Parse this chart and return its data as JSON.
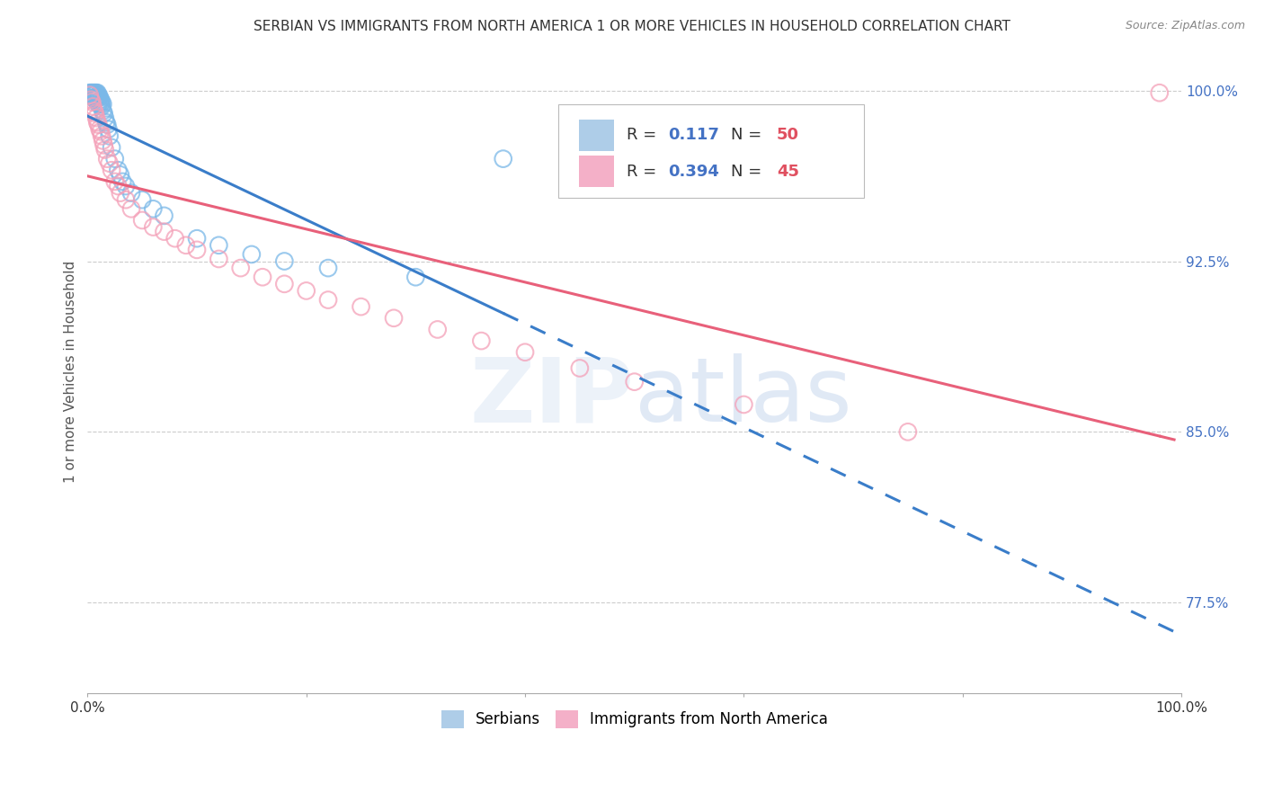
{
  "title": "SERBIAN VS IMMIGRANTS FROM NORTH AMERICA 1 OR MORE VEHICLES IN HOUSEHOLD CORRELATION CHART",
  "source": "Source: ZipAtlas.com",
  "ylabel": "1 or more Vehicles in Household",
  "xlim": [
    0.0,
    1.0
  ],
  "ylim": [
    0.735,
    1.018
  ],
  "ytick_positions": [
    0.775,
    0.85,
    0.925,
    1.0
  ],
  "ytick_labels": [
    "77.5%",
    "85.0%",
    "92.5%",
    "100.0%"
  ],
  "blue_R": 0.117,
  "blue_N": 50,
  "pink_R": 0.394,
  "pink_N": 45,
  "blue_color": "#7ab8e8",
  "pink_color": "#f4a0b8",
  "blue_line_color": "#3a7dc9",
  "pink_line_color": "#e8607a",
  "legend_label_blue": "Serbians",
  "legend_label_pink": "Immigrants from North America",
  "blue_scatter_x": [
    0.002,
    0.003,
    0.004,
    0.004,
    0.005,
    0.005,
    0.006,
    0.006,
    0.007,
    0.007,
    0.007,
    0.008,
    0.008,
    0.009,
    0.009,
    0.009,
    0.01,
    0.01,
    0.01,
    0.011,
    0.011,
    0.012,
    0.012,
    0.013,
    0.013,
    0.014,
    0.014,
    0.015,
    0.016,
    0.017,
    0.018,
    0.019,
    0.02,
    0.022,
    0.025,
    0.028,
    0.03,
    0.032,
    0.035,
    0.04,
    0.05,
    0.06,
    0.07,
    0.1,
    0.12,
    0.15,
    0.18,
    0.22,
    0.3,
    0.38
  ],
  "blue_scatter_y": [
    0.999,
    0.999,
    0.999,
    0.998,
    0.999,
    0.998,
    0.999,
    0.997,
    0.999,
    0.997,
    0.996,
    0.999,
    0.997,
    0.999,
    0.997,
    0.995,
    0.998,
    0.997,
    0.994,
    0.997,
    0.995,
    0.996,
    0.994,
    0.995,
    0.993,
    0.994,
    0.991,
    0.99,
    0.988,
    0.986,
    0.985,
    0.983,
    0.98,
    0.975,
    0.97,
    0.965,
    0.963,
    0.96,
    0.958,
    0.955,
    0.952,
    0.948,
    0.945,
    0.935,
    0.932,
    0.928,
    0.925,
    0.922,
    0.918,
    0.97
  ],
  "pink_scatter_x": [
    0.002,
    0.003,
    0.004,
    0.005,
    0.006,
    0.007,
    0.008,
    0.009,
    0.01,
    0.011,
    0.012,
    0.013,
    0.014,
    0.015,
    0.016,
    0.018,
    0.02,
    0.022,
    0.025,
    0.028,
    0.03,
    0.035,
    0.04,
    0.05,
    0.06,
    0.07,
    0.08,
    0.09,
    0.1,
    0.12,
    0.14,
    0.16,
    0.18,
    0.2,
    0.22,
    0.25,
    0.28,
    0.32,
    0.36,
    0.4,
    0.45,
    0.5,
    0.6,
    0.75,
    0.98
  ],
  "pink_scatter_y": [
    0.998,
    0.996,
    0.995,
    0.993,
    0.991,
    0.99,
    0.988,
    0.986,
    0.985,
    0.983,
    0.982,
    0.98,
    0.978,
    0.976,
    0.974,
    0.97,
    0.968,
    0.965,
    0.96,
    0.958,
    0.955,
    0.952,
    0.948,
    0.943,
    0.94,
    0.938,
    0.935,
    0.932,
    0.93,
    0.926,
    0.922,
    0.918,
    0.915,
    0.912,
    0.908,
    0.905,
    0.9,
    0.895,
    0.89,
    0.885,
    0.878,
    0.872,
    0.862,
    0.85,
    0.999
  ]
}
